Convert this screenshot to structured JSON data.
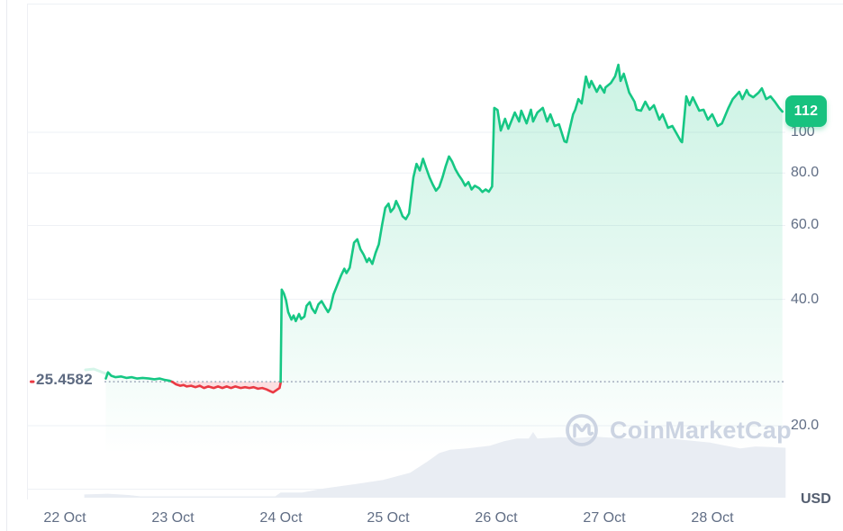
{
  "chart": {
    "currency_label": "USD",
    "watermark_text": "CoinMarketCap",
    "current_price_badge": "112",
    "reference_price_label": "25.4582",
    "colors": {
      "up": "#16c784",
      "down": "#ea3943",
      "badge_bg": "#17c27f",
      "axis_text": "#616e85",
      "grid": "#eef1f5",
      "dotted_line": "#a8b1c2",
      "volume_fill": "#e9edf3",
      "watermark": "#ccd4e2"
    }
  },
  "chart_data": {
    "type": "line",
    "y_scale": "log",
    "x_unit": "days_since_22_Oct",
    "legend": "off",
    "grid": "horizontal",
    "x_tick_labels": [
      "22 Oct",
      "23 Oct",
      "24 Oct",
      "25 Oct",
      "26 Oct",
      "27 Oct",
      "28 Oct"
    ],
    "y_tick_labels": [
      "100",
      "80.0",
      "60.0",
      "40.0",
      "20.0"
    ],
    "y_tick_values": [
      100,
      80,
      60,
      40,
      20
    ],
    "y_axis_side": "right",
    "reference_price": 25.4582,
    "current_price": 112,
    "series": [
      {
        "name": "Price (USD)",
        "points": [
          [
            0.38,
            25.9
          ],
          [
            0.4,
            26.8
          ],
          [
            0.43,
            26.3
          ],
          [
            0.47,
            26.1
          ],
          [
            0.52,
            26.2
          ],
          [
            0.57,
            26.0
          ],
          [
            0.62,
            26.1
          ],
          [
            0.67,
            25.9
          ],
          [
            0.72,
            26.0
          ],
          [
            0.78,
            25.9
          ],
          [
            0.83,
            25.8
          ],
          [
            0.88,
            25.9
          ],
          [
            0.93,
            25.7
          ],
          [
            0.97,
            25.6
          ],
          [
            1.0,
            25.4
          ],
          [
            1.03,
            25.1
          ],
          [
            1.07,
            24.9
          ],
          [
            1.1,
            25.0
          ],
          [
            1.13,
            24.8
          ],
          [
            1.17,
            24.9
          ],
          [
            1.21,
            24.7
          ],
          [
            1.25,
            24.9
          ],
          [
            1.29,
            24.6
          ],
          [
            1.33,
            24.8
          ],
          [
            1.38,
            24.6
          ],
          [
            1.42,
            24.8
          ],
          [
            1.46,
            24.6
          ],
          [
            1.5,
            24.8
          ],
          [
            1.54,
            24.6
          ],
          [
            1.58,
            24.8
          ],
          [
            1.63,
            24.6
          ],
          [
            1.67,
            24.7
          ],
          [
            1.71,
            24.6
          ],
          [
            1.75,
            24.7
          ],
          [
            1.79,
            24.5
          ],
          [
            1.83,
            24.6
          ],
          [
            1.87,
            24.4
          ],
          [
            1.9,
            24.2
          ],
          [
            1.93,
            24.0
          ],
          [
            1.96,
            24.3
          ],
          [
            1.99,
            24.6
          ],
          [
            2.0,
            25.3
          ],
          [
            2.01,
            42.2
          ],
          [
            2.03,
            41.3
          ],
          [
            2.05,
            39.8
          ],
          [
            2.07,
            37.3
          ],
          [
            2.1,
            35.8
          ],
          [
            2.12,
            36.6
          ],
          [
            2.14,
            35.5
          ],
          [
            2.17,
            36.9
          ],
          [
            2.19,
            35.9
          ],
          [
            2.22,
            36.4
          ],
          [
            2.24,
            38.6
          ],
          [
            2.27,
            39.4
          ],
          [
            2.29,
            38.1
          ],
          [
            2.32,
            37.1
          ],
          [
            2.35,
            38.9
          ],
          [
            2.38,
            39.6
          ],
          [
            2.41,
            38.4
          ],
          [
            2.44,
            37.3
          ],
          [
            2.46,
            38.1
          ],
          [
            2.49,
            41.1
          ],
          [
            2.53,
            43.6
          ],
          [
            2.56,
            45.6
          ],
          [
            2.59,
            47.3
          ],
          [
            2.61,
            46.2
          ],
          [
            2.64,
            47.6
          ],
          [
            2.68,
            54.6
          ],
          [
            2.71,
            55.6
          ],
          [
            2.74,
            52.6
          ],
          [
            2.77,
            51.1
          ],
          [
            2.8,
            49.1
          ],
          [
            2.82,
            50.1
          ],
          [
            2.85,
            48.6
          ],
          [
            2.88,
            51.6
          ],
          [
            2.91,
            54.1
          ],
          [
            2.94,
            60.1
          ],
          [
            2.97,
            66.1
          ],
          [
            3.0,
            67.6
          ],
          [
            3.02,
            64.6
          ],
          [
            3.05,
            66.1
          ],
          [
            3.07,
            68.6
          ],
          [
            3.1,
            66.1
          ],
          [
            3.13,
            63.1
          ],
          [
            3.16,
            62.1
          ],
          [
            3.19,
            64.1
          ],
          [
            3.23,
            78.1
          ],
          [
            3.26,
            84.1
          ],
          [
            3.29,
            81.1
          ],
          [
            3.32,
            86.5
          ],
          [
            3.35,
            82.1
          ],
          [
            3.38,
            78.1
          ],
          [
            3.41,
            75.1
          ],
          [
            3.44,
            72.6
          ],
          [
            3.47,
            74.1
          ],
          [
            3.5,
            78.1
          ],
          [
            3.53,
            83.1
          ],
          [
            3.56,
            87.6
          ],
          [
            3.59,
            85.1
          ],
          [
            3.62,
            81.6
          ],
          [
            3.65,
            79.1
          ],
          [
            3.68,
            77.1
          ],
          [
            3.71,
            74.6
          ],
          [
            3.74,
            76.1
          ],
          [
            3.77,
            73.1
          ],
          [
            3.8,
            74.6
          ],
          [
            3.84,
            73.6
          ],
          [
            3.87,
            72.1
          ],
          [
            3.9,
            73.1
          ],
          [
            3.93,
            72.2
          ],
          [
            3.96,
            74.3
          ],
          [
            3.98,
            114.3
          ],
          [
            4.01,
            113.0
          ],
          [
            4.04,
            101.0
          ],
          [
            4.08,
            107.7
          ],
          [
            4.11,
            102.0
          ],
          [
            4.17,
            111.5
          ],
          [
            4.21,
            106.1
          ],
          [
            4.23,
            112.6
          ],
          [
            4.28,
            105.0
          ],
          [
            4.32,
            113.2
          ],
          [
            4.34,
            106.1
          ],
          [
            4.38,
            111.5
          ],
          [
            4.43,
            114.3
          ],
          [
            4.47,
            106.1
          ],
          [
            4.5,
            110.4
          ],
          [
            4.54,
            103.5
          ],
          [
            4.58,
            104.5
          ],
          [
            4.63,
            95.2
          ],
          [
            4.65,
            94.7
          ],
          [
            4.71,
            110.4
          ],
          [
            4.73,
            113.2
          ],
          [
            4.76,
            120.0
          ],
          [
            4.79,
            117.2
          ],
          [
            4.83,
            135.8
          ],
          [
            4.86,
            127.9
          ],
          [
            4.88,
            132.5
          ],
          [
            4.93,
            124.9
          ],
          [
            4.96,
            129.3
          ],
          [
            5.0,
            124.3
          ],
          [
            5.01,
            127.9
          ],
          [
            5.06,
            131.0
          ],
          [
            5.1,
            136.0
          ],
          [
            5.13,
            144.8
          ],
          [
            5.15,
            132.5
          ],
          [
            5.18,
            137.9
          ],
          [
            5.23,
            124.3
          ],
          [
            5.28,
            118.3
          ],
          [
            5.3,
            113.2
          ],
          [
            5.34,
            112.6
          ],
          [
            5.38,
            118.3
          ],
          [
            5.42,
            113.2
          ],
          [
            5.46,
            116.0
          ],
          [
            5.51,
            107.2
          ],
          [
            5.54,
            110.4
          ],
          [
            5.59,
            102.5
          ],
          [
            5.63,
            103.5
          ],
          [
            5.71,
            95.2
          ],
          [
            5.72,
            94.7
          ],
          [
            5.76,
            121.8
          ],
          [
            5.79,
            116.0
          ],
          [
            5.82,
            121.2
          ],
          [
            5.88,
            112.6
          ],
          [
            5.92,
            113.2
          ],
          [
            5.96,
            107.2
          ],
          [
            6.0,
            110.4
          ],
          [
            6.05,
            103.5
          ],
          [
            6.09,
            105.0
          ],
          [
            6.15,
            114.3
          ],
          [
            6.19,
            120.0
          ],
          [
            6.25,
            124.9
          ],
          [
            6.28,
            120.0
          ],
          [
            6.32,
            126.1
          ],
          [
            6.34,
            123.0
          ],
          [
            6.38,
            121.2
          ],
          [
            6.43,
            124.3
          ],
          [
            6.46,
            127.3
          ],
          [
            6.5,
            120.0
          ],
          [
            6.54,
            121.8
          ],
          [
            6.58,
            118.3
          ],
          [
            6.62,
            114.3
          ],
          [
            6.65,
            112.0
          ]
        ]
      }
    ],
    "volume_series": {
      "name": "Volume (relative 0-1)",
      "points": [
        [
          0.18,
          0.05
        ],
        [
          0.4,
          0.06
        ],
        [
          0.6,
          0.04
        ],
        [
          0.7,
          0.02
        ],
        [
          1.0,
          0.02
        ],
        [
          1.5,
          0.02
        ],
        [
          1.95,
          0.02
        ],
        [
          2.0,
          0.08
        ],
        [
          2.2,
          0.08
        ],
        [
          2.4,
          0.14
        ],
        [
          2.7,
          0.21
        ],
        [
          2.95,
          0.27
        ],
        [
          3.2,
          0.38
        ],
        [
          3.36,
          0.55
        ],
        [
          3.47,
          0.68
        ],
        [
          3.57,
          0.73
        ],
        [
          3.73,
          0.75
        ],
        [
          3.94,
          0.79
        ],
        [
          4.07,
          0.86
        ],
        [
          4.19,
          0.9
        ],
        [
          4.3,
          0.9
        ],
        [
          4.34,
          1.0
        ],
        [
          4.38,
          0.9
        ],
        [
          4.6,
          0.92
        ],
        [
          4.75,
          0.91
        ],
        [
          4.9,
          0.93
        ],
        [
          5.1,
          0.91
        ],
        [
          5.23,
          0.9
        ],
        [
          5.4,
          0.91
        ],
        [
          5.6,
          0.9
        ],
        [
          5.73,
          0.88
        ],
        [
          5.98,
          0.84
        ],
        [
          6.1,
          0.8
        ],
        [
          6.26,
          0.75
        ],
        [
          6.4,
          0.78
        ],
        [
          6.55,
          0.77
        ],
        [
          6.68,
          0.76
        ]
      ]
    }
  }
}
